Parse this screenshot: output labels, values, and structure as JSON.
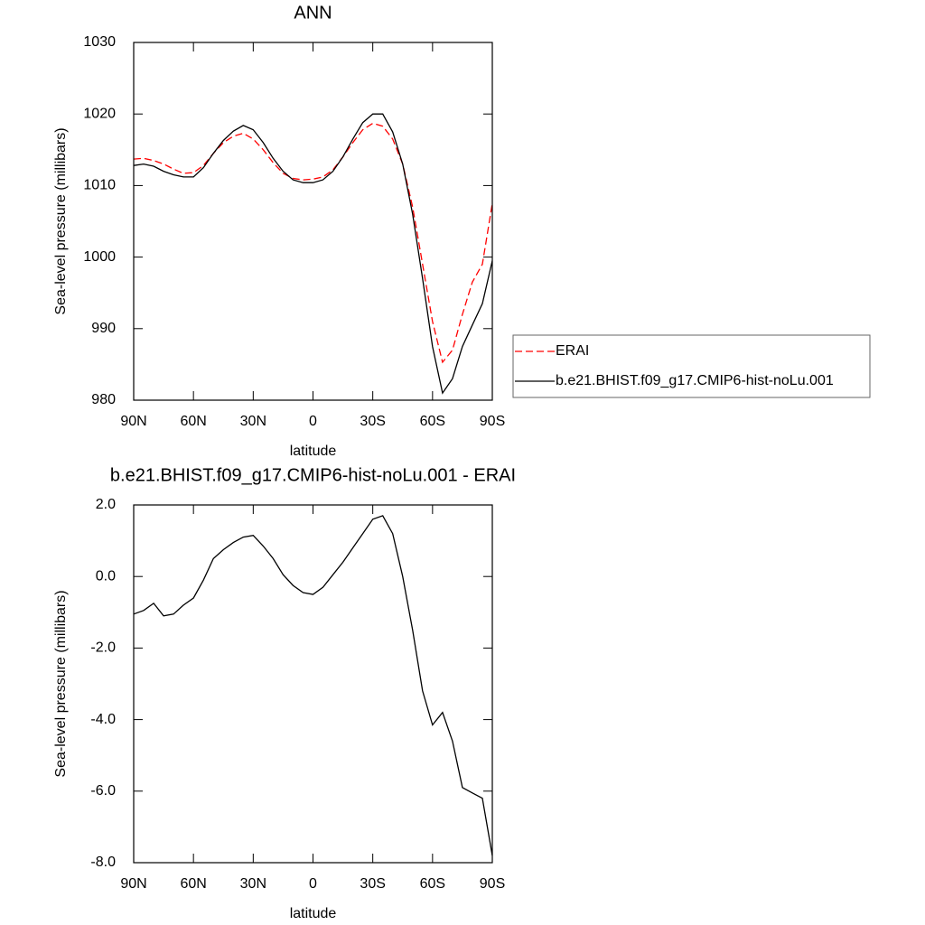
{
  "chart_data": [
    {
      "type": "line",
      "title": "ANN",
      "xlabel": "latitude",
      "ylabel": "Sea-level pressure (millibars)",
      "x": [
        90,
        85,
        80,
        75,
        70,
        65,
        60,
        55,
        50,
        45,
        40,
        35,
        30,
        25,
        20,
        15,
        10,
        5,
        0,
        -5,
        -10,
        -15,
        -20,
        -25,
        -30,
        -35,
        -40,
        -45,
        -50,
        -55,
        -60,
        -65,
        -70,
        -75,
        -80,
        -85,
        -90
      ],
      "xlim": [
        90,
        -90
      ],
      "xticks": [
        {
          "value": 90,
          "label": "90N"
        },
        {
          "value": 60,
          "label": "60N"
        },
        {
          "value": 30,
          "label": "30N"
        },
        0,
        {
          "value": -30,
          "label": "30S"
        },
        {
          "value": -60,
          "label": "60S"
        },
        {
          "value": -90,
          "label": "90S"
        }
      ],
      "ylim": [
        980,
        1030
      ],
      "yticks": [
        980,
        990,
        1000,
        1010,
        1020,
        1030
      ],
      "legend": "right",
      "series": [
        {
          "name": "ERAI",
          "color": "#ff0000",
          "line_style": "dashed",
          "values": [
            1013.7,
            1013.8,
            1013.5,
            1013.0,
            1012.3,
            1011.7,
            1011.8,
            1012.8,
            1014.5,
            1016.0,
            1016.9,
            1017.3,
            1016.5,
            1015.0,
            1013.2,
            1011.7,
            1011.0,
            1010.8,
            1010.9,
            1011.2,
            1012.2,
            1014.0,
            1016.0,
            1017.8,
            1018.7,
            1018.3,
            1016.5,
            1013.0,
            1007.0,
            999.0,
            991.0,
            985.3,
            987.0,
            992.0,
            996.5,
            999.0,
            1007.5
          ]
        },
        {
          "name": "b.e21.BHIST.f09_g17.CMIP6-hist-noLu.001",
          "color": "#000000",
          "line_style": "solid",
          "values": [
            1012.8,
            1013.0,
            1012.7,
            1012.0,
            1011.5,
            1011.2,
            1011.2,
            1012.5,
            1014.5,
            1016.3,
            1017.6,
            1018.4,
            1017.8,
            1016.0,
            1013.8,
            1012.0,
            1010.8,
            1010.4,
            1010.4,
            1010.8,
            1012.0,
            1014.0,
            1016.5,
            1018.8,
            1020.0,
            1020.0,
            1017.5,
            1013.0,
            1006.0,
            997.0,
            987.5,
            981.0,
            983.0,
            987.5,
            990.5,
            993.5,
            999.5
          ]
        }
      ]
    },
    {
      "type": "line",
      "title": "b.e21.BHIST.f09_g17.CMIP6-hist-noLu.001 - ERAI",
      "xlabel": "latitude",
      "ylabel": "Sea-level pressure (millibars)",
      "x": [
        90,
        85,
        80,
        75,
        70,
        65,
        60,
        55,
        50,
        45,
        40,
        35,
        30,
        25,
        20,
        15,
        10,
        5,
        0,
        -5,
        -10,
        -15,
        -20,
        -25,
        -30,
        -35,
        -40,
        -45,
        -50,
        -55,
        -60,
        -65,
        -70,
        -75,
        -80,
        -85,
        -90
      ],
      "xlim": [
        90,
        -90
      ],
      "xticks": [
        {
          "value": 90,
          "label": "90N"
        },
        {
          "value": 60,
          "label": "60N"
        },
        {
          "value": 30,
          "label": "30N"
        },
        0,
        {
          "value": -30,
          "label": "30S"
        },
        {
          "value": -60,
          "label": "60S"
        },
        {
          "value": -90,
          "label": "90S"
        }
      ],
      "ylim": [
        -8,
        2
      ],
      "yticks": [
        {
          "value": -8,
          "label": "-8.0"
        },
        {
          "value": -6,
          "label": "-6.0"
        },
        {
          "value": -4,
          "label": "-4.0"
        },
        {
          "value": -2,
          "label": "-2.0"
        },
        {
          "value": 0,
          "label": "0.0"
        },
        {
          "value": 2,
          "label": "2.0"
        }
      ],
      "color": "#000000",
      "values": [
        -1.05,
        -0.95,
        -0.75,
        -1.1,
        -1.05,
        -0.8,
        -0.6,
        -0.1,
        0.5,
        0.75,
        0.95,
        1.1,
        1.15,
        0.85,
        0.5,
        0.05,
        -0.25,
        -0.45,
        -0.5,
        -0.3,
        0.05,
        0.4,
        0.8,
        1.2,
        1.6,
        1.7,
        1.2,
        0.0,
        -1.5,
        -3.2,
        -4.15,
        -3.8,
        -4.6,
        -5.9,
        -6.05,
        -6.2,
        -7.8
      ]
    }
  ]
}
